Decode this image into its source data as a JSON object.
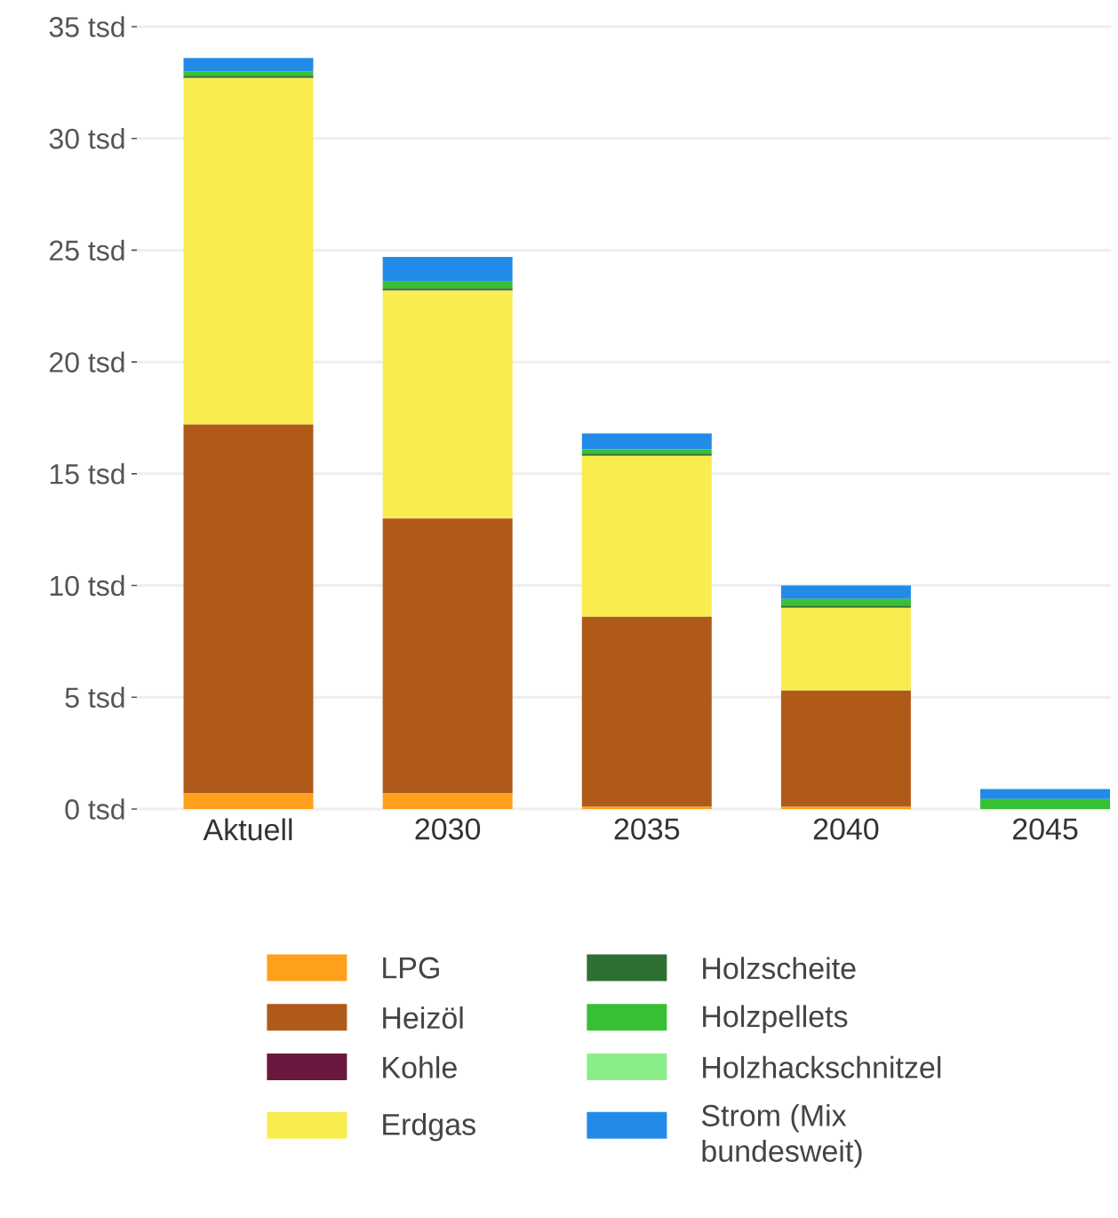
{
  "chart_data": {
    "type": "bar",
    "stacked": true,
    "categories": [
      "Aktuell",
      "2030",
      "2035",
      "2040",
      "2045"
    ],
    "series": [
      {
        "name": "LPG",
        "color": "#ffa01c",
        "values": [
          0.7,
          0.7,
          0.1,
          0.1,
          0
        ]
      },
      {
        "name": "Heizöl",
        "color": "#b05a1a",
        "values": [
          16.5,
          12.3,
          8.5,
          5.2,
          0
        ]
      },
      {
        "name": "Kohle",
        "color": "#6b1840",
        "values": [
          0,
          0,
          0,
          0,
          0
        ]
      },
      {
        "name": "Erdgas",
        "color": "#f9ec4f",
        "values": [
          15.5,
          10.2,
          7.2,
          3.7,
          0
        ]
      },
      {
        "name": "Holzscheite",
        "color": "#2e7032",
        "values": [
          0.1,
          0.1,
          0.1,
          0.1,
          0
        ]
      },
      {
        "name": "Holzpellets",
        "color": "#38c035",
        "values": [
          0.2,
          0.3,
          0.2,
          0.3,
          0.45
        ]
      },
      {
        "name": "Holzhackschnitzel",
        "color": "#8aee88",
        "values": [
          0,
          0,
          0,
          0,
          0
        ]
      },
      {
        "name": "Strom (Mix bundesweit)",
        "color": "#228be8",
        "values": [
          0.6,
          1.1,
          0.7,
          0.6,
          0.45
        ]
      }
    ],
    "ylim": [
      0,
      35
    ],
    "yticks": [
      {
        "value": 0,
        "label": "0 tsd"
      },
      {
        "value": 5,
        "label": "5 tsd"
      },
      {
        "value": 10,
        "label": "10 tsd"
      },
      {
        "value": 15,
        "label": "15 tsd"
      },
      {
        "value": 20,
        "label": "20 tsd"
      },
      {
        "value": 25,
        "label": "25 tsd"
      },
      {
        "value": 30,
        "label": "30 tsd"
      },
      {
        "value": 35,
        "label": "35 tsd"
      }
    ],
    "grid": "y",
    "legend": "bottom"
  }
}
